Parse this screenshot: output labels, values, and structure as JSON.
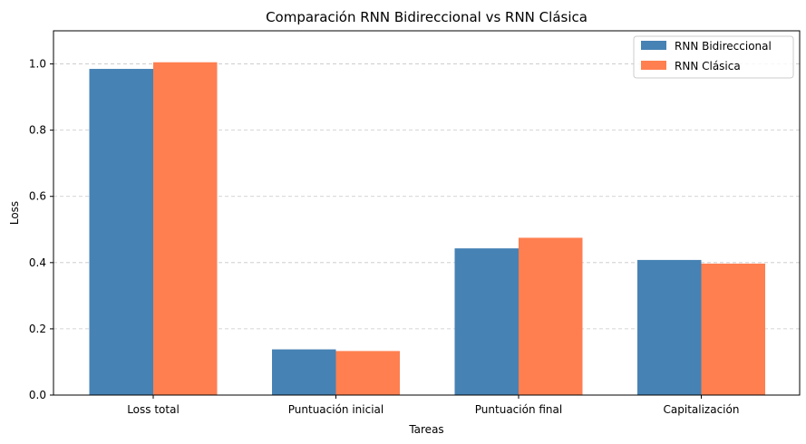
{
  "chart_data": {
    "type": "bar",
    "title": "Comparación RNN Bidireccional vs RNN Clásica",
    "xlabel": "Tareas",
    "ylabel": "Loss",
    "categories": [
      "Loss total",
      "Puntuación inicial",
      "Puntuación final",
      "Capitalización"
    ],
    "series": [
      {
        "name": "RNN Bidireccional",
        "color": "#4682b4",
        "values": [
          0.985,
          0.138,
          0.443,
          0.408
        ]
      },
      {
        "name": "RNN Clásica",
        "color": "#ff7f50",
        "values": [
          1.005,
          0.133,
          0.475,
          0.397
        ]
      }
    ],
    "ylim": [
      0,
      1.1
    ],
    "yticks": [
      "0.0",
      "0.2",
      "0.4",
      "0.6",
      "0.8",
      "1.0"
    ],
    "grid": "y",
    "legend_position": "top-right"
  }
}
